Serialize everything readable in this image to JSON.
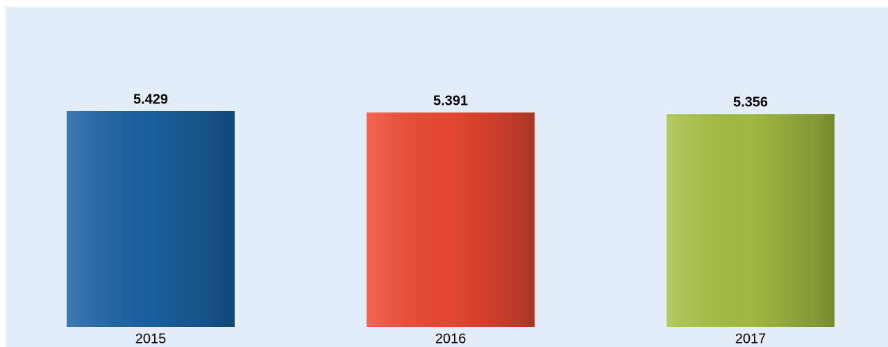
{
  "chart_data": {
    "type": "bar",
    "categories": [
      "2015",
      "2016",
      "2017"
    ],
    "values": [
      5.429,
      5.391,
      5.356
    ],
    "colors": [
      "#1a64a6",
      "#f04a33",
      "#a4c444"
    ]
  }
}
